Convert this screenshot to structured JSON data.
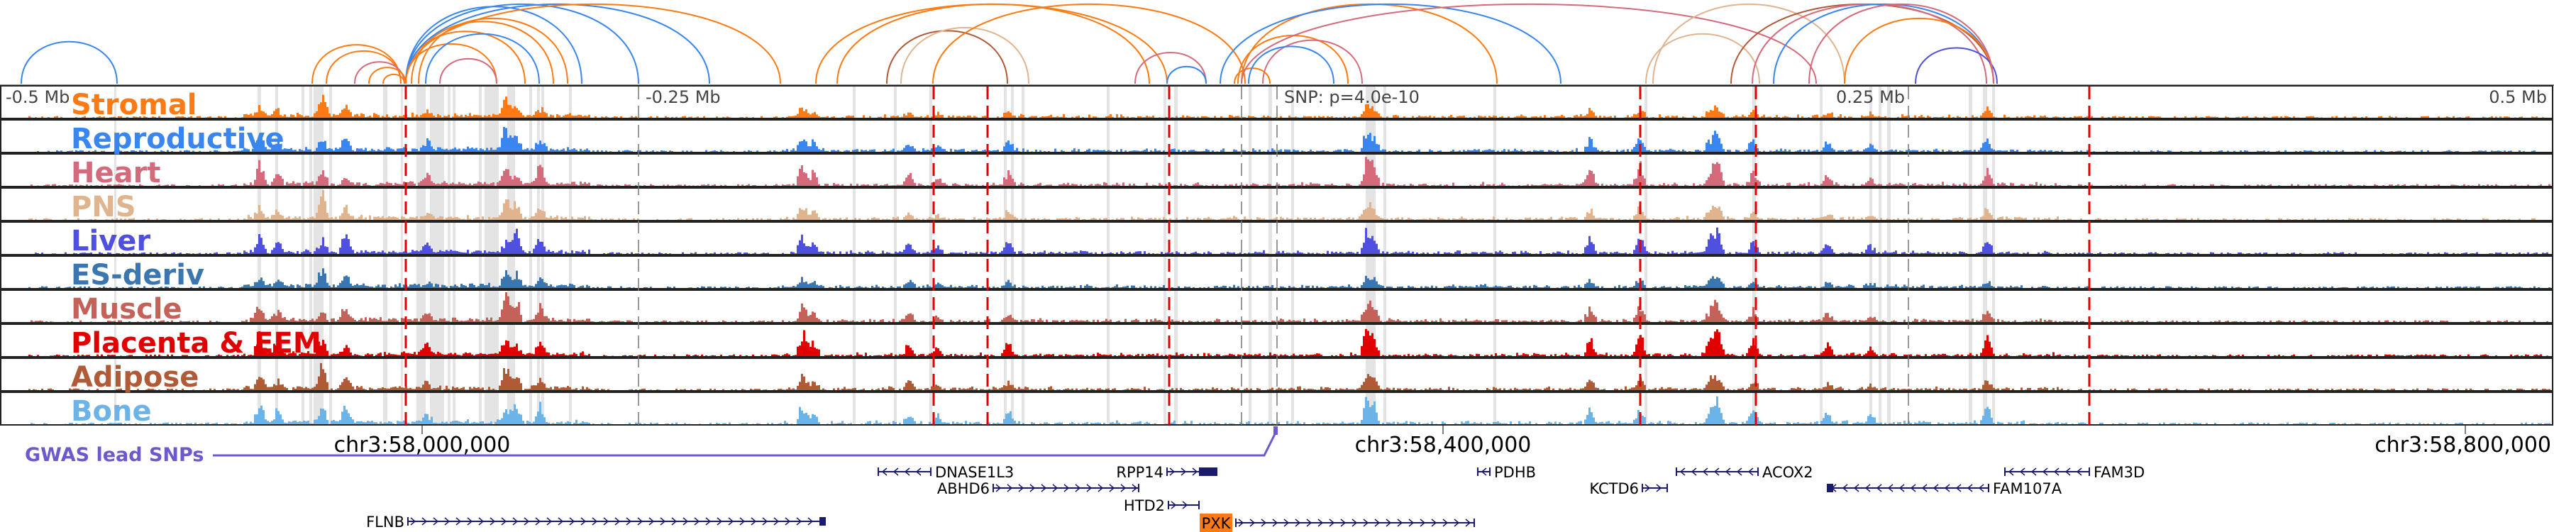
{
  "axis_top": {
    "left": "-0.5 Mb",
    "mid_left": "-0.25 Mb",
    "snp": "SNP: p=4.0e-10",
    "mid_right": "0.25 Mb",
    "right": "0.5 Mb"
  },
  "tracks": [
    {
      "label": "Stromal",
      "color": "#ff7a12"
    },
    {
      "label": "Reproductive",
      "color": "#3a86f0"
    },
    {
      "label": "Heart",
      "color": "#d46a7c"
    },
    {
      "label": "PNS",
      "color": "#e0b48e"
    },
    {
      "label": "Liver",
      "color": "#5050e0"
    },
    {
      "label": "ES-deriv",
      "color": "#3b76b0"
    },
    {
      "label": "Muscle",
      "color": "#c4625a"
    },
    {
      "label": "Placenta & EEM",
      "color": "#e00000"
    },
    {
      "label": "Adipose",
      "color": "#b05a38"
    },
    {
      "label": "Bone",
      "color": "#6cb4e8"
    }
  ],
  "coordinates": [
    "chr3:58,000,000",
    "chr3:58,400,000",
    "chr3:58,800,000"
  ],
  "gwas": {
    "label": "GWAS lead SNPs",
    "color": "#6a5acd"
  },
  "genes": [
    {
      "name": "DNASE1L3",
      "strand": "-"
    },
    {
      "name": "ABHD6",
      "strand": "+"
    },
    {
      "name": "RPP14",
      "strand": "+"
    },
    {
      "name": "HTD2",
      "strand": "+"
    },
    {
      "name": "PXK",
      "strand": "+",
      "highlight": "#ff7a12"
    },
    {
      "name": "PDHB",
      "strand": "-"
    },
    {
      "name": "KCTD6",
      "strand": "+"
    },
    {
      "name": "ACOX2",
      "strand": "-"
    },
    {
      "name": "FAM107A",
      "strand": "-"
    },
    {
      "name": "FAM3D",
      "strand": "-"
    },
    {
      "name": "FLNB",
      "strand": "+"
    }
  ]
}
